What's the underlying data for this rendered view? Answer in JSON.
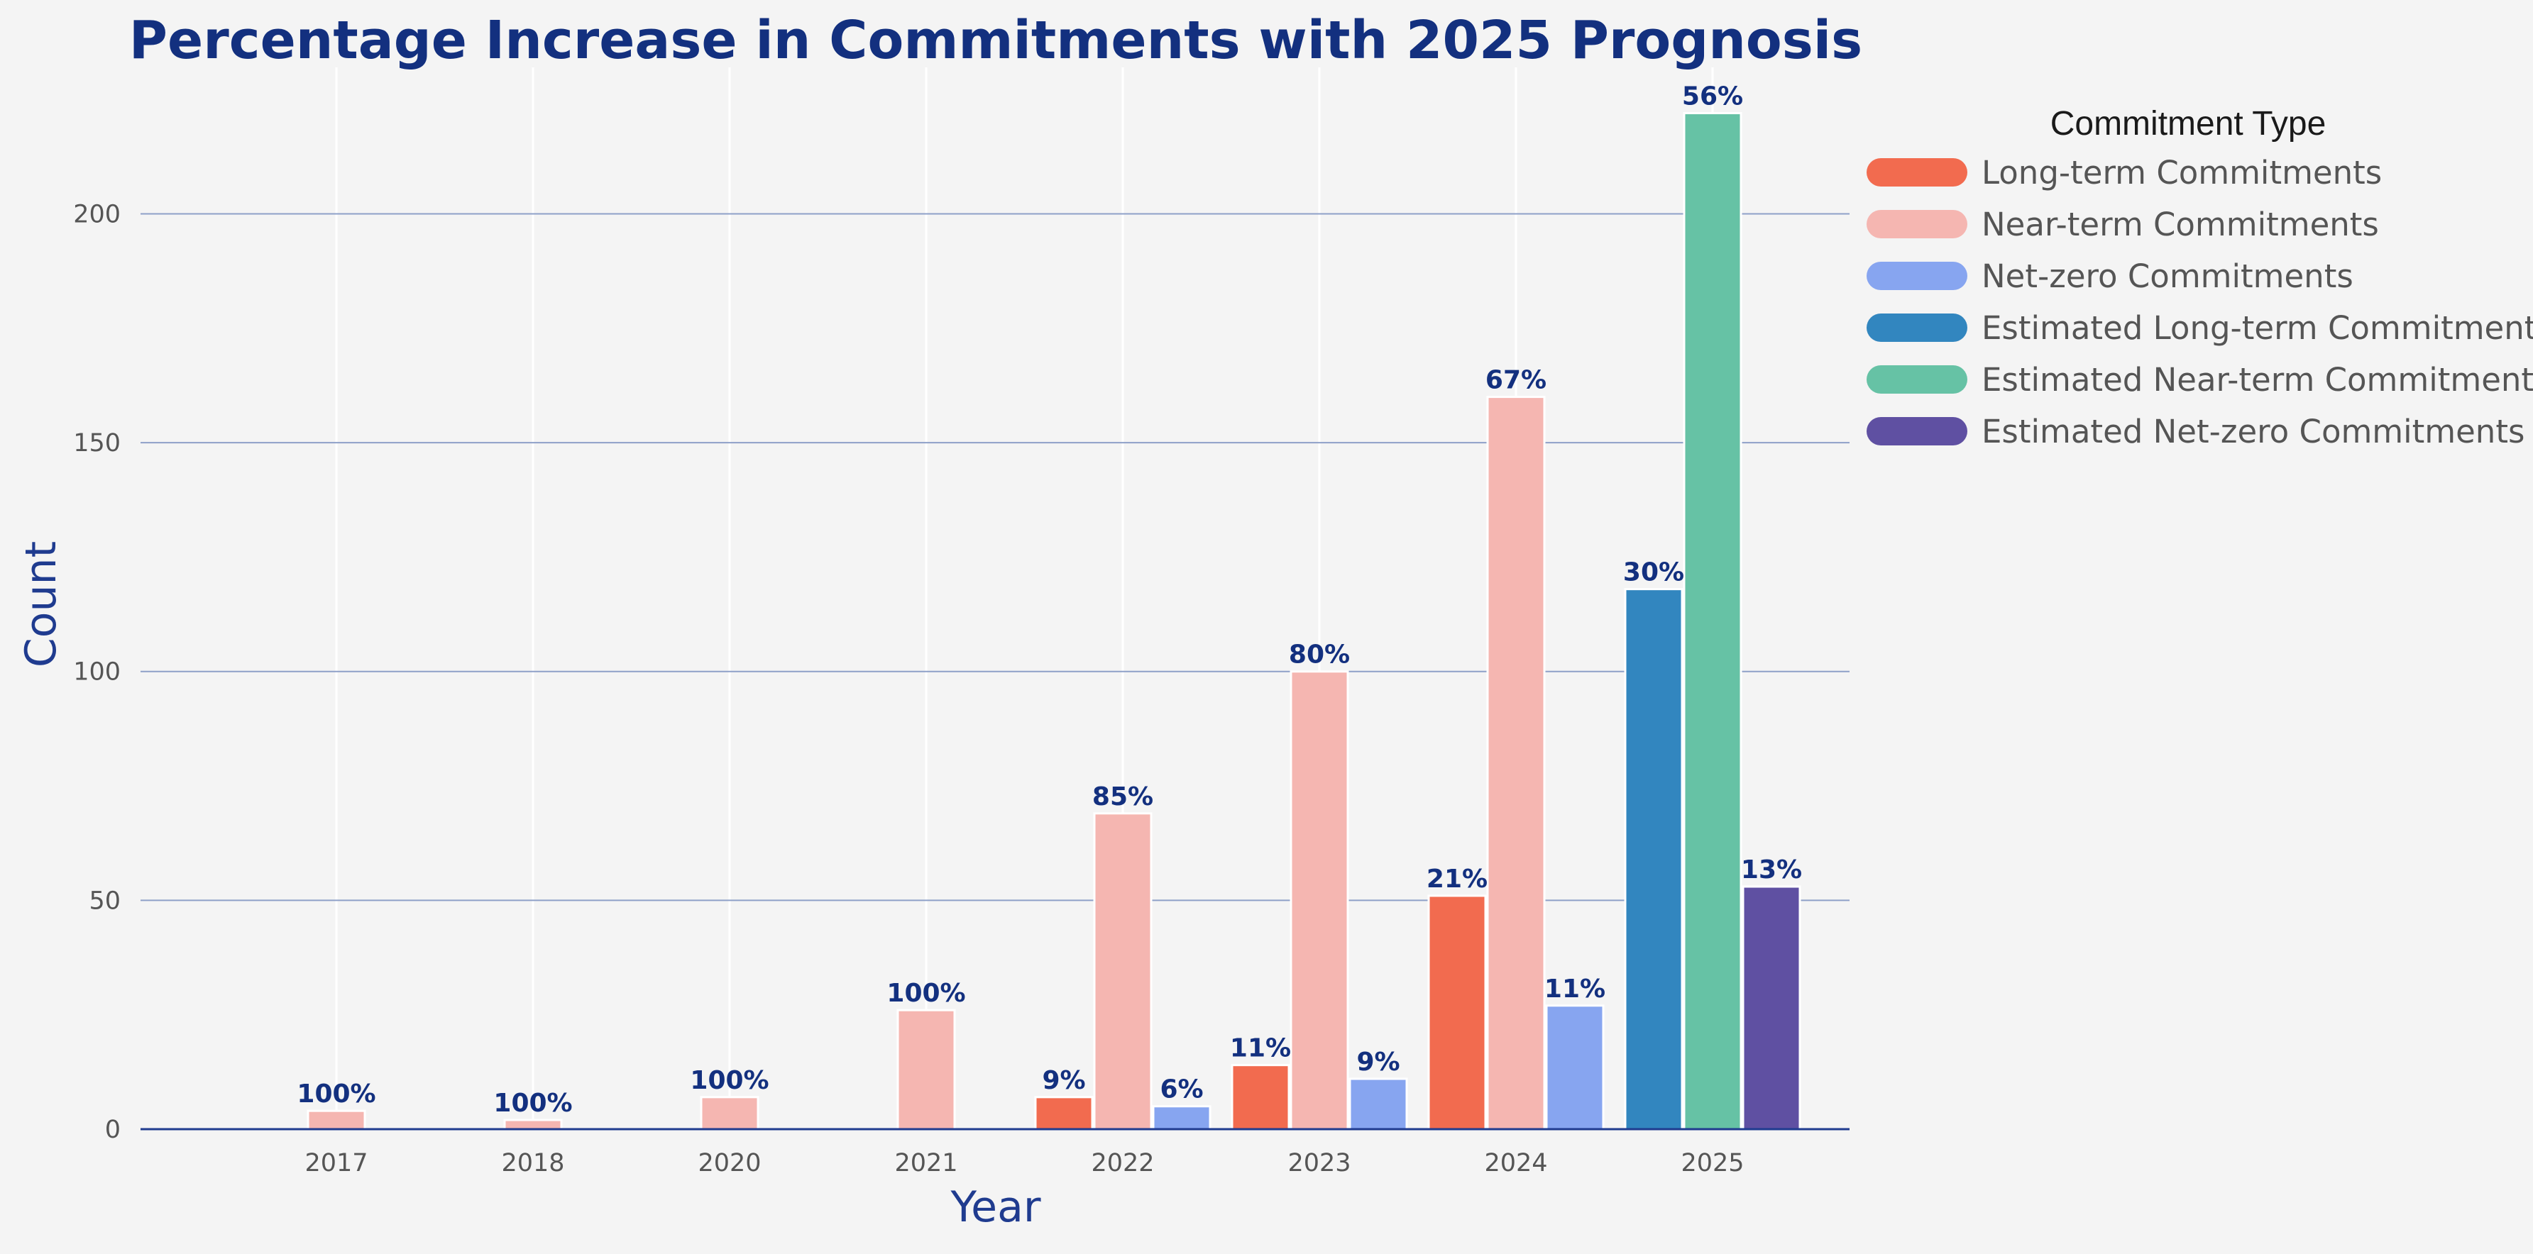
{
  "chart_data": {
    "type": "bar",
    "title": "Percentage Increase in Commitments with 2025 Prognosis",
    "xlabel": "Year",
    "ylabel": "Count",
    "ylim": [
      0,
      232
    ],
    "yticks": [
      0,
      50,
      100,
      150,
      200
    ],
    "grid": true,
    "legend_title": "Commitment Type",
    "legend_position": "right",
    "categories": [
      "2017",
      "2018",
      "2020",
      "2021",
      "2022",
      "2023",
      "2024",
      "2025"
    ],
    "series": [
      {
        "name": "Long-term Commitments",
        "color": "#f26b4f",
        "values": [
          0,
          0,
          0,
          0,
          7,
          14,
          51,
          0
        ],
        "labels": [
          "",
          "",
          "",
          "",
          "9%",
          "11%",
          "21%",
          ""
        ]
      },
      {
        "name": "Near-term Commitments",
        "color": "#f5b6b1",
        "values": [
          4,
          2,
          7,
          26,
          69,
          100,
          160,
          0
        ],
        "labels": [
          "100%",
          "100%",
          "100%",
          "100%",
          "85%",
          "80%",
          "67%",
          ""
        ]
      },
      {
        "name": "Net-zero Commitments",
        "color": "#87a5f0",
        "values": [
          0,
          0,
          0,
          0,
          5,
          11,
          27,
          0
        ],
        "labels": [
          "",
          "",
          "",
          "",
          "6%",
          "9%",
          "11%",
          ""
        ]
      },
      {
        "name": "Estimated Long-term Commitments",
        "color": "#3286bf",
        "values": [
          0,
          0,
          0,
          0,
          0,
          0,
          0,
          118
        ],
        "labels": [
          "",
          "",
          "",
          "",
          "",
          "",
          "",
          "30%"
        ]
      },
      {
        "name": "Estimated Near-term Commitments",
        "color": "#66c2a5",
        "values": [
          0,
          0,
          0,
          0,
          0,
          0,
          0,
          222
        ],
        "labels": [
          "",
          "",
          "",
          "",
          "",
          "",
          "",
          "56%"
        ]
      },
      {
        "name": "Estimated Net-zero Commitments",
        "color": "#5f50a2",
        "values": [
          0,
          0,
          0,
          0,
          0,
          0,
          0,
          53
        ],
        "labels": [
          "",
          "",
          "",
          "",
          "",
          "",
          "",
          "13%"
        ]
      }
    ]
  }
}
